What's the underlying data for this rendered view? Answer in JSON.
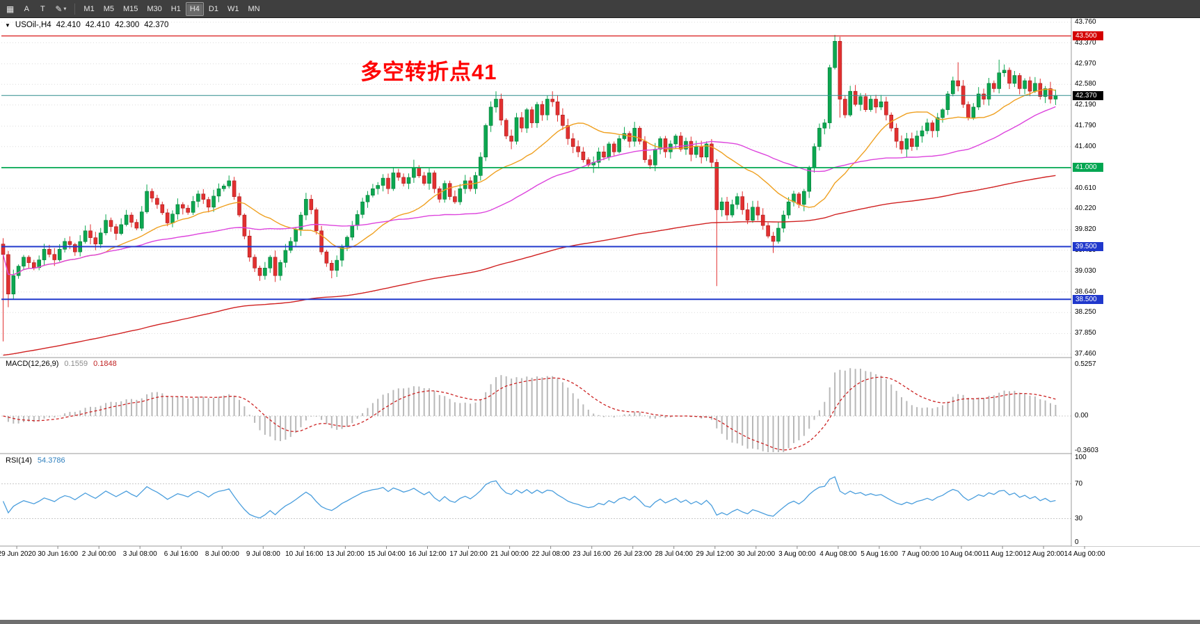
{
  "toolbar": {
    "grid_icon": "▦",
    "tool_a": "A",
    "tool_t": "T",
    "paint_icon": "✎",
    "caret_icon": "▾",
    "timeframes": [
      "M1",
      "M5",
      "M15",
      "M30",
      "H1",
      "H4",
      "D1",
      "W1",
      "MN"
    ],
    "active_timeframe": "H4"
  },
  "symbol_line": {
    "collapse_icon": "▼",
    "symbol": "USOil-,H4",
    "open": "42.410",
    "high": "42.410",
    "low": "42.300",
    "close": "42.370"
  },
  "annotation": {
    "text": "多空转折点41",
    "color": "#FF0000"
  },
  "price_axis": {
    "labels": [
      "43.760",
      "43.370",
      "42.970",
      "42.580",
      "42.190",
      "41.790",
      "41.400",
      "41.000",
      "40.610",
      "40.220",
      "39.820",
      "39.430",
      "39.030",
      "38.640",
      "38.250",
      "37.850",
      "37.460"
    ]
  },
  "hlines": [
    {
      "price": 43.5,
      "label": "43.500",
      "color": "#D40000",
      "width": 1.2
    },
    {
      "price": 41.0,
      "label": "41.000",
      "color": "#00A651",
      "width": 1.8
    },
    {
      "price": 39.5,
      "label": "39.500",
      "color": "#2038CC",
      "width": 2
    },
    {
      "price": 38.5,
      "label": "38.500",
      "color": "#2038CC",
      "width": 2
    }
  ],
  "current_price": {
    "price": 42.37,
    "label": "42.370",
    "line_color": "#2E8B8B",
    "badge_bg": "#000000"
  },
  "time_axis": [
    "29 Jun 2020",
    "30 Jun 16:00",
    "2 Jul 00:00",
    "3 Jul 08:00",
    "6 Jul 16:00",
    "8 Jul 00:00",
    "9 Jul 08:00",
    "10 Jul 16:00",
    "13 Jul 20:00",
    "15 Jul 04:00",
    "16 Jul 12:00",
    "17 Jul 20:00",
    "21 Jul 00:00",
    "22 Jul 08:00",
    "23 Jul 16:00",
    "26 Jul 23:00",
    "28 Jul 04:00",
    "29 Jul 12:00",
    "30 Jul 20:00",
    "3 Aug 00:00",
    "4 Aug 08:00",
    "5 Aug 16:00",
    "7 Aug 00:00",
    "10 Aug 04:00",
    "11 Aug 12:00",
    "12 Aug 20:00",
    "14 Aug 00:00"
  ],
  "macd_panel": {
    "name": "MACD(12,26,9)",
    "value_main": "0.1559",
    "value_signal": "0.1848",
    "axis": [
      {
        "v": 0.5257,
        "label": "0.5257"
      },
      {
        "v": 0,
        "label": "0.00"
      },
      {
        "v": -0.3603,
        "label": "-0.3603"
      }
    ],
    "hist_color": "#B8B8B8",
    "signal_color": "#CC2222"
  },
  "rsi_panel": {
    "name": "RSI(14)",
    "value": "54.3786",
    "axis": [
      {
        "v": 100,
        "label": "100"
      },
      {
        "v": 70,
        "label": "70"
      },
      {
        "v": 30,
        "label": "30"
      },
      {
        "v": 0,
        "label": "0"
      }
    ],
    "levels": [
      70,
      30
    ],
    "line_color": "#4A9EDD"
  },
  "chart_data": {
    "type": "candlestick",
    "symbol": "USOil",
    "timeframe": "H4",
    "ylim": [
      37.46,
      43.76
    ],
    "bars": 206,
    "current_ohlc": {
      "open": 42.41,
      "high": 42.41,
      "low": 42.3,
      "close": 42.37
    },
    "up_color": "#0CA750",
    "down_color": "#E23030",
    "close_anchors": [
      [
        0,
        39.35
      ],
      [
        1,
        38.6
      ],
      [
        2,
        38.95
      ],
      [
        4,
        39.3
      ],
      [
        6,
        39.1
      ],
      [
        8,
        39.45
      ],
      [
        10,
        39.25
      ],
      [
        12,
        39.6
      ],
      [
        14,
        39.4
      ],
      [
        16,
        39.8
      ],
      [
        18,
        39.55
      ],
      [
        20,
        40.0
      ],
      [
        22,
        39.75
      ],
      [
        24,
        40.1
      ],
      [
        26,
        39.85
      ],
      [
        28,
        40.55
      ],
      [
        30,
        40.3
      ],
      [
        32,
        39.95
      ],
      [
        34,
        40.3
      ],
      [
        36,
        40.15
      ],
      [
        38,
        40.5
      ],
      [
        40,
        40.25
      ],
      [
        42,
        40.6
      ],
      [
        44,
        40.75
      ],
      [
        46,
        40.1
      ],
      [
        48,
        39.3
      ],
      [
        50,
        38.95
      ],
      [
        52,
        39.3
      ],
      [
        53,
        38.95
      ],
      [
        54,
        39.2
      ],
      [
        56,
        39.6
      ],
      [
        58,
        40.1
      ],
      [
        59,
        40.4
      ],
      [
        60,
        40.2
      ],
      [
        61,
        39.8
      ],
      [
        62,
        39.4
      ],
      [
        64,
        39.05
      ],
      [
        66,
        39.5
      ],
      [
        68,
        39.9
      ],
      [
        70,
        40.35
      ],
      [
        72,
        40.6
      ],
      [
        74,
        40.8
      ],
      [
        75,
        40.6
      ],
      [
        76,
        40.9
      ],
      [
        78,
        40.7
      ],
      [
        80,
        41.0
      ],
      [
        82,
        40.7
      ],
      [
        83,
        40.9
      ],
      [
        84,
        40.6
      ],
      [
        85,
        40.4
      ],
      [
        86,
        40.7
      ],
      [
        87,
        40.45
      ],
      [
        88,
        40.35
      ],
      [
        89,
        40.6
      ],
      [
        90,
        40.75
      ],
      [
        91,
        40.6
      ],
      [
        92,
        40.85
      ],
      [
        93,
        41.2
      ],
      [
        94,
        41.8
      ],
      [
        95,
        42.15
      ],
      [
        96,
        42.3
      ],
      [
        97,
        41.9
      ],
      [
        98,
        41.6
      ],
      [
        99,
        41.5
      ],
      [
        100,
        41.95
      ],
      [
        101,
        41.75
      ],
      [
        102,
        42.1
      ],
      [
        103,
        41.85
      ],
      [
        104,
        42.2
      ],
      [
        105,
        42.0
      ],
      [
        106,
        42.3
      ],
      [
        107,
        42.25
      ],
      [
        108,
        42.0
      ],
      [
        109,
        41.8
      ],
      [
        110,
        41.55
      ],
      [
        111,
        41.4
      ],
      [
        112,
        41.3
      ],
      [
        113,
        41.15
      ],
      [
        114,
        41.05
      ],
      [
        115,
        41.1
      ],
      [
        116,
        41.3
      ],
      [
        117,
        41.2
      ],
      [
        118,
        41.45
      ],
      [
        119,
        41.3
      ],
      [
        120,
        41.55
      ],
      [
        121,
        41.65
      ],
      [
        122,
        41.5
      ],
      [
        123,
        41.75
      ],
      [
        124,
        41.5
      ],
      [
        125,
        41.15
      ],
      [
        126,
        41.05
      ],
      [
        127,
        41.35
      ],
      [
        128,
        41.55
      ],
      [
        129,
        41.3
      ],
      [
        130,
        41.45
      ],
      [
        131,
        41.6
      ],
      [
        132,
        41.35
      ],
      [
        133,
        41.5
      ],
      [
        134,
        41.25
      ],
      [
        135,
        41.4
      ],
      [
        136,
        41.2
      ],
      [
        137,
        41.45
      ],
      [
        138,
        41.1
      ],
      [
        139,
        40.2
      ],
      [
        140,
        40.35
      ],
      [
        141,
        40.1
      ],
      [
        142,
        40.3
      ],
      [
        143,
        40.45
      ],
      [
        144,
        40.2
      ],
      [
        145,
        40.0
      ],
      [
        146,
        40.25
      ],
      [
        147,
        40.1
      ],
      [
        148,
        39.9
      ],
      [
        149,
        39.7
      ],
      [
        150,
        39.6
      ],
      [
        151,
        39.85
      ],
      [
        152,
        40.1
      ],
      [
        153,
        40.35
      ],
      [
        154,
        40.5
      ],
      [
        155,
        40.3
      ],
      [
        156,
        40.55
      ],
      [
        157,
        41.0
      ],
      [
        158,
        41.4
      ],
      [
        159,
        41.75
      ],
      [
        160,
        41.85
      ],
      [
        161,
        42.9
      ],
      [
        162,
        43.4
      ],
      [
        163,
        42.3
      ],
      [
        164,
        42.0
      ],
      [
        165,
        42.45
      ],
      [
        166,
        42.2
      ],
      [
        167,
        42.35
      ],
      [
        168,
        42.1
      ],
      [
        169,
        42.3
      ],
      [
        170,
        42.15
      ],
      [
        171,
        42.25
      ],
      [
        172,
        42.0
      ],
      [
        173,
        41.75
      ],
      [
        174,
        41.5
      ],
      [
        175,
        41.35
      ],
      [
        176,
        41.55
      ],
      [
        177,
        41.4
      ],
      [
        178,
        41.6
      ],
      [
        179,
        41.7
      ],
      [
        180,
        41.85
      ],
      [
        181,
        41.7
      ],
      [
        182,
        41.95
      ],
      [
        183,
        42.1
      ],
      [
        184,
        42.4
      ],
      [
        185,
        42.65
      ],
      [
        186,
        42.55
      ],
      [
        187,
        42.2
      ],
      [
        188,
        41.95
      ],
      [
        189,
        42.15
      ],
      [
        190,
        42.4
      ],
      [
        191,
        42.3
      ],
      [
        192,
        42.6
      ],
      [
        193,
        42.5
      ],
      [
        194,
        42.8
      ],
      [
        195,
        42.85
      ],
      [
        196,
        42.6
      ],
      [
        197,
        42.75
      ],
      [
        198,
        42.5
      ],
      [
        199,
        42.65
      ],
      [
        200,
        42.45
      ],
      [
        201,
        42.6
      ],
      [
        202,
        42.35
      ],
      [
        203,
        42.5
      ],
      [
        204,
        42.3
      ],
      [
        205,
        42.37
      ]
    ],
    "wick_events": [
      {
        "bar": 0,
        "low": 37.7
      },
      {
        "bar": 1,
        "low": 38.35
      },
      {
        "bar": 28,
        "high": 40.68
      },
      {
        "bar": 44,
        "high": 40.85
      },
      {
        "bar": 50,
        "low": 38.85
      },
      {
        "bar": 53,
        "low": 38.87
      },
      {
        "bar": 59,
        "high": 40.5
      },
      {
        "bar": 64,
        "low": 38.9
      },
      {
        "bar": 80,
        "high": 41.15
      },
      {
        "bar": 96,
        "high": 42.45
      },
      {
        "bar": 99,
        "low": 41.35
      },
      {
        "bar": 107,
        "high": 42.45
      },
      {
        "bar": 115,
        "low": 40.9
      },
      {
        "bar": 139,
        "low": 38.75
      },
      {
        "bar": 150,
        "low": 39.38
      },
      {
        "bar": 162,
        "high": 43.52
      },
      {
        "bar": 163,
        "low": 41.95
      },
      {
        "bar": 176,
        "low": 41.2
      },
      {
        "bar": 186,
        "high": 43.0
      },
      {
        "bar": 194,
        "high": 43.05
      }
    ],
    "moving_averages": [
      {
        "type": "sma",
        "period": 20,
        "color": "#EFA020"
      },
      {
        "type": "sma",
        "period": 50,
        "color": "#DD44DD"
      },
      {
        "type": "ema",
        "period": 200,
        "color": "#D02020",
        "seed": 37.42
      }
    ],
    "indicators": [
      {
        "type": "macd",
        "fast": 12,
        "slow": 26,
        "signal": 9,
        "current": [
          0.1559,
          0.1848
        ],
        "range": [
          -0.3603,
          0.5257
        ]
      },
      {
        "type": "rsi",
        "period": 14,
        "current": 54.3786,
        "range": [
          0,
          100
        ],
        "levels": [
          70,
          30
        ]
      }
    ]
  }
}
